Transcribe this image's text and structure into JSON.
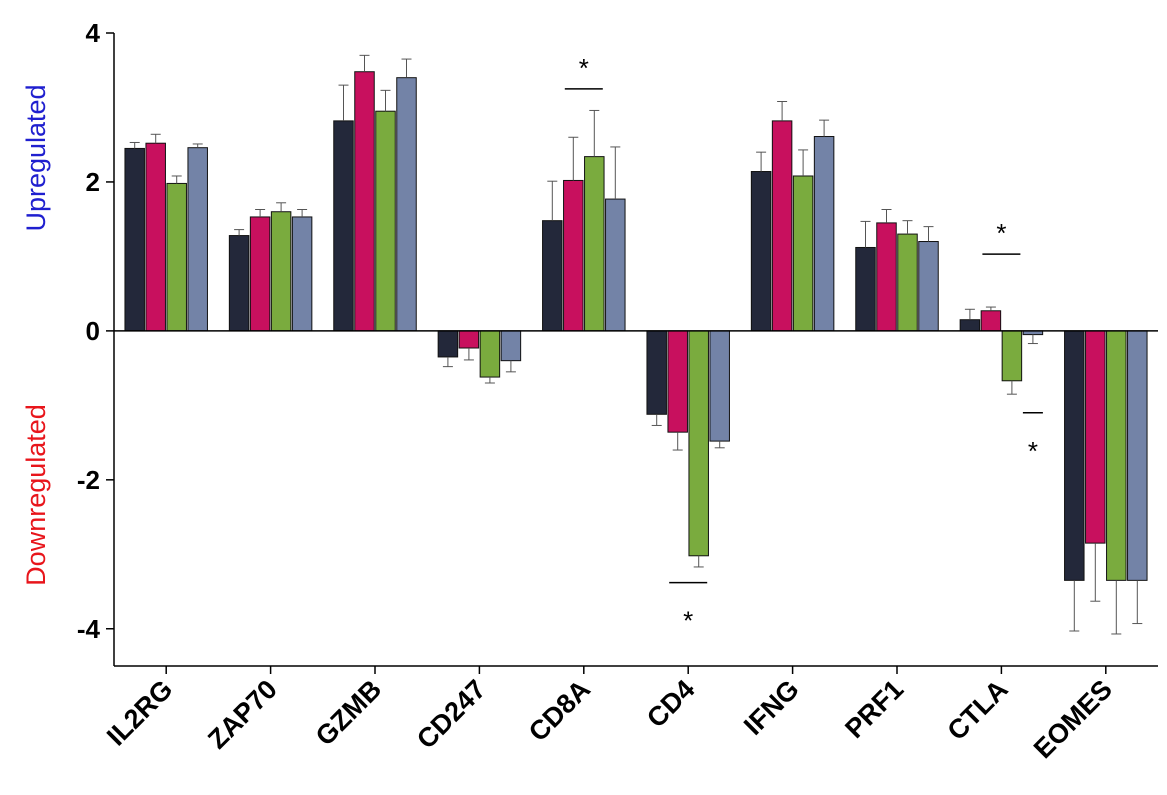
{
  "chart_data": {
    "type": "bar",
    "categories": [
      "IL2RG",
      "ZAP70",
      "GZMB",
      "CD247",
      "CD8A",
      "CD4",
      "IFNG",
      "PRF1",
      "CTLA",
      "EOMES"
    ],
    "series": [
      {
        "color": "#23283a",
        "values": [
          2.45,
          1.28,
          2.82,
          -0.35,
          1.48,
          -1.12,
          2.14,
          1.12,
          0.15,
          -3.35
        ],
        "errors": [
          0.08,
          0.08,
          0.48,
          0.13,
          0.53,
          0.15,
          0.26,
          0.35,
          0.14,
          0.68
        ]
      },
      {
        "color": "#c8105e",
        "values": [
          2.52,
          1.53,
          3.48,
          -0.23,
          2.02,
          -1.36,
          2.82,
          1.45,
          0.27,
          -2.85
        ],
        "errors": [
          0.12,
          0.1,
          0.22,
          0.16,
          0.58,
          0.24,
          0.26,
          0.18,
          0.05,
          0.78
        ]
      },
      {
        "color": "#7aab3e",
        "values": [
          1.98,
          1.6,
          2.95,
          -0.62,
          2.34,
          -3.02,
          2.08,
          1.3,
          -0.67,
          -3.35
        ],
        "errors": [
          0.1,
          0.12,
          0.28,
          0.08,
          0.62,
          0.15,
          0.35,
          0.18,
          0.18,
          0.72
        ]
      },
      {
        "color": "#7383a7",
        "values": [
          2.46,
          1.53,
          3.4,
          -0.4,
          1.77,
          -1.48,
          2.61,
          1.2,
          -0.05,
          -3.35
        ],
        "errors": [
          0.05,
          0.1,
          0.25,
          0.15,
          0.7,
          0.09,
          0.22,
          0.2,
          0.12,
          0.58
        ]
      }
    ],
    "ylim": [
      -4.5,
      4
    ],
    "yticks": [
      {
        "value": 4,
        "label": "4"
      },
      {
        "value": 2,
        "label": "2"
      },
      {
        "value": 0,
        "label": "0"
      },
      {
        "value": -2,
        "label": "-2"
      },
      {
        "value": -4,
        "label": "-4"
      }
    ],
    "annotations": [
      {
        "text": "*",
        "category": "CD8A",
        "y": 3.25,
        "position": "above"
      },
      {
        "text": "*",
        "category": "CD4",
        "y": -3.38,
        "position": "below"
      },
      {
        "text": "*",
        "category": "CTLA",
        "y": 1.03,
        "position": "above"
      },
      {
        "text": "*",
        "category": "CTLA",
        "y": -1.1,
        "position": "below",
        "offset_series": 3
      }
    ],
    "grid": false,
    "legend": "none"
  },
  "side_labels": {
    "upper": "Upregulated",
    "upper_color": "#1f1fcf",
    "lower": "Downregulated",
    "lower_color": "#e8151b"
  }
}
